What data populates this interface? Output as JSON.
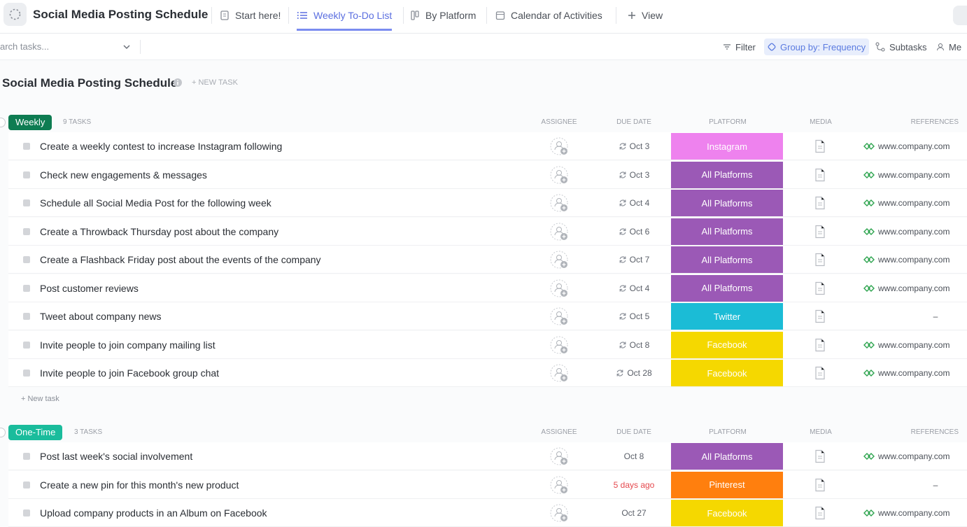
{
  "header": {
    "title": "Social Media Posting Schedule",
    "tabs": [
      "Start here!",
      "Weekly To-Do List",
      "By Platform",
      "Calendar of Activities",
      "View"
    ],
    "active_tab": 1
  },
  "toolbar": {
    "search_placeholder": "arch tasks...",
    "buttons": [
      "Filter",
      "Group by: Frequency",
      "Subtasks",
      "Me"
    ]
  },
  "list": {
    "title": "Social Media Posting Schedule",
    "new_task": "+ NEW TASK",
    "columns": [
      "ASSIGNEE",
      "DUE DATE",
      "PLATFORM",
      "MEDIA",
      "REFERENCES"
    ],
    "groups": [
      {
        "name": "Weekly",
        "color": "#0e7c52",
        "count": "9 TASKS",
        "new_task": "+ New task",
        "tasks": [
          {
            "name": "Create a weekly contest to increase Instagram following",
            "due": "Oct 3",
            "recurring": true,
            "overdue": false,
            "platform": "Instagram",
            "platform_color": "#ee82ee",
            "reference": "www.company.com"
          },
          {
            "name": "Check new engagements & messages",
            "due": "Oct 3",
            "recurring": true,
            "overdue": false,
            "platform": "All Platforms",
            "platform_color": "#9b59b6",
            "reference": "www.company.com"
          },
          {
            "name": "Schedule all Social Media Post for the following week",
            "due": "Oct 4",
            "recurring": true,
            "overdue": false,
            "platform": "All Platforms",
            "platform_color": "#9b59b6",
            "reference": "www.company.com"
          },
          {
            "name": "Create a Throwback Thursday post about the company",
            "due": "Oct 6",
            "recurring": true,
            "overdue": false,
            "platform": "All Platforms",
            "platform_color": "#9b59b6",
            "reference": "www.company.com"
          },
          {
            "name": "Create a Flashback Friday post about the events of the company",
            "due": "Oct 7",
            "recurring": true,
            "overdue": false,
            "platform": "All Platforms",
            "platform_color": "#9b59b6",
            "reference": "www.company.com"
          },
          {
            "name": "Post customer reviews",
            "due": "Oct 4",
            "recurring": true,
            "overdue": false,
            "platform": "All Platforms",
            "platform_color": "#9b59b6",
            "reference": "www.company.com"
          },
          {
            "name": "Tweet about company news",
            "due": "Oct 5",
            "recurring": true,
            "overdue": false,
            "platform": "Twitter",
            "platform_color": "#1bbcd6",
            "reference": "–"
          },
          {
            "name": "Invite people to join company mailing list",
            "due": "Oct 8",
            "recurring": true,
            "overdue": false,
            "platform": "Facebook",
            "platform_color": "#f5d800",
            "reference": "www.company.com"
          },
          {
            "name": "Invite people to join Facebook group chat",
            "due": "Oct 28",
            "recurring": true,
            "overdue": false,
            "platform": "Facebook",
            "platform_color": "#f5d800",
            "reference": "www.company.com"
          }
        ]
      },
      {
        "name": "One-Time",
        "color": "#1abc9c",
        "count": "3 TASKS",
        "tasks": [
          {
            "name": "Post last week's social involvement",
            "due": "Oct 8",
            "recurring": false,
            "overdue": false,
            "platform": "All Platforms",
            "platform_color": "#9b59b6",
            "reference": "www.company.com"
          },
          {
            "name": "Create a new pin for this month's new product",
            "due": "5 days ago",
            "recurring": false,
            "overdue": true,
            "platform": "Pinterest",
            "platform_color": "#ff7f0e",
            "reference": "–"
          },
          {
            "name": "Upload company products in an Album on Facebook",
            "due": "Oct 27",
            "recurring": false,
            "overdue": false,
            "platform": "Facebook",
            "platform_color": "#f5d800",
            "reference": "www.company.com"
          }
        ]
      }
    ]
  }
}
